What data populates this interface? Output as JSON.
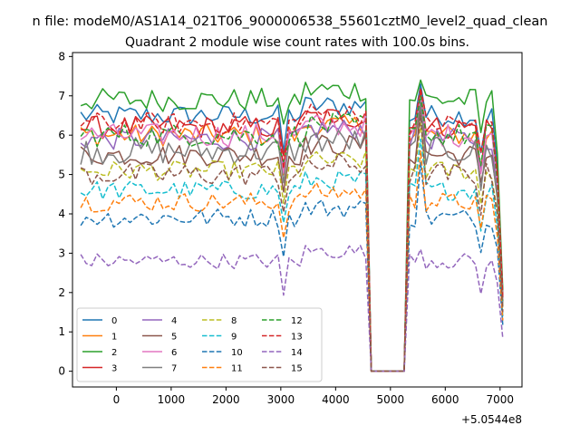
{
  "chart_data": {
    "type": "line",
    "suptitle": "n file: modeM0/AS1A14_021T06_9000006538_55601cztM0_level2_quad_clean",
    "title": "Quadrant 2 module wise count rates with 100.0s bins.",
    "xlabel": "",
    "ylabel": "",
    "x_offset_label": "+5.0544e8",
    "xlim": [
      -800,
      7400
    ],
    "ylim": [
      -0.4,
      8.1
    ],
    "xticks": [
      0,
      1000,
      2000,
      3000,
      4000,
      5000,
      6000,
      7000
    ],
    "yticks": [
      0,
      1,
      2,
      3,
      4,
      5,
      6,
      7,
      8
    ],
    "legend": {
      "placement": "lower-left",
      "columns": 4
    },
    "x_range": {
      "start": -650,
      "step": 100,
      "end": 7050
    },
    "gap": {
      "drop_start": 4550,
      "zero_from": 4700,
      "zero_to": 5300,
      "rise_end": 5500
    },
    "series": [
      {
        "name": "0",
        "color": "#1f77b4",
        "dash": "solid",
        "base": 6.5,
        "noise": 0.28,
        "peak": 7.6
      },
      {
        "name": "1",
        "color": "#ff7f0e",
        "dash": "solid",
        "base": 6.0,
        "noise": 0.28,
        "peak": 7.3
      },
      {
        "name": "2",
        "color": "#2ca02c",
        "dash": "solid",
        "base": 6.9,
        "noise": 0.3,
        "peak": 7.7
      },
      {
        "name": "3",
        "color": "#d62728",
        "dash": "solid",
        "base": 6.2,
        "noise": 0.3,
        "peak": 7.4
      },
      {
        "name": "4",
        "color": "#9467bd",
        "dash": "solid",
        "base": 5.9,
        "noise": 0.28,
        "peak": 7.2
      },
      {
        "name": "5",
        "color": "#8c564b",
        "dash": "solid",
        "base": 5.5,
        "noise": 0.28,
        "peak": 7.0
      },
      {
        "name": "6",
        "color": "#e377c2",
        "dash": "solid",
        "base": 6.0,
        "noise": 0.3,
        "peak": 7.3
      },
      {
        "name": "7",
        "color": "#7f7f7f",
        "dash": "solid",
        "base": 5.6,
        "noise": 0.35,
        "peak": 7.1
      },
      {
        "name": "8",
        "color": "#bcbd22",
        "dash": "dashed",
        "base": 5.1,
        "noise": 0.25,
        "peak": 6.6
      },
      {
        "name": "9",
        "color": "#17becf",
        "dash": "dashed",
        "base": 4.6,
        "noise": 0.25,
        "peak": 6.2
      },
      {
        "name": "10",
        "color": "#1f77b4",
        "dash": "dashed",
        "base": 3.9,
        "noise": 0.25,
        "peak": 5.6
      },
      {
        "name": "11",
        "color": "#ff7f0e",
        "dash": "dashed",
        "base": 4.3,
        "noise": 0.25,
        "peak": 5.9
      },
      {
        "name": "12",
        "color": "#2ca02c",
        "dash": "dashed",
        "base": 6.0,
        "noise": 0.3,
        "peak": 7.3
      },
      {
        "name": "13",
        "color": "#d62728",
        "dash": "dashed",
        "base": 6.3,
        "noise": 0.28,
        "peak": 7.5
      },
      {
        "name": "14",
        "color": "#9467bd",
        "dash": "dashed",
        "base": 2.8,
        "noise": 0.2,
        "peak": 3.4
      },
      {
        "name": "15",
        "color": "#8c564b",
        "dash": "dashed",
        "base": 5.0,
        "noise": 0.3,
        "peak": 6.8
      }
    ]
  }
}
